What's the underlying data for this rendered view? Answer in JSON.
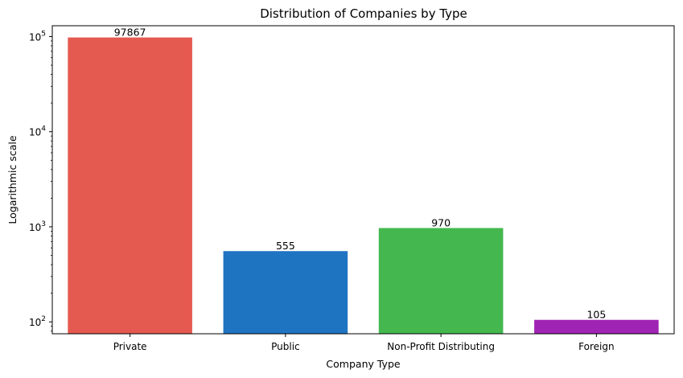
{
  "chart_data": {
    "type": "bar",
    "title": "Distribution of Companies by Type",
    "xlabel": "Company Type",
    "ylabel": "Logarithmic scale",
    "yscale": "log",
    "ylim": [
      75,
      130000
    ],
    "yticks": [
      100,
      1000,
      10000,
      100000
    ],
    "ytick_labels": [
      {
        "base": "10",
        "exp": "2"
      },
      {
        "base": "10",
        "exp": "3"
      },
      {
        "base": "10",
        "exp": "4"
      },
      {
        "base": "10",
        "exp": "5"
      }
    ],
    "categories": [
      "Private",
      "Public",
      "Non-Profit Distributing",
      "Foreign"
    ],
    "values": [
      97867,
      555,
      970,
      105
    ],
    "value_labels": [
      "97867",
      "555",
      "970",
      "105"
    ],
    "colors": [
      "#e55a50",
      "#1f74c2",
      "#44b84f",
      "#a024b4"
    ],
    "grid": false,
    "legend": "none"
  }
}
